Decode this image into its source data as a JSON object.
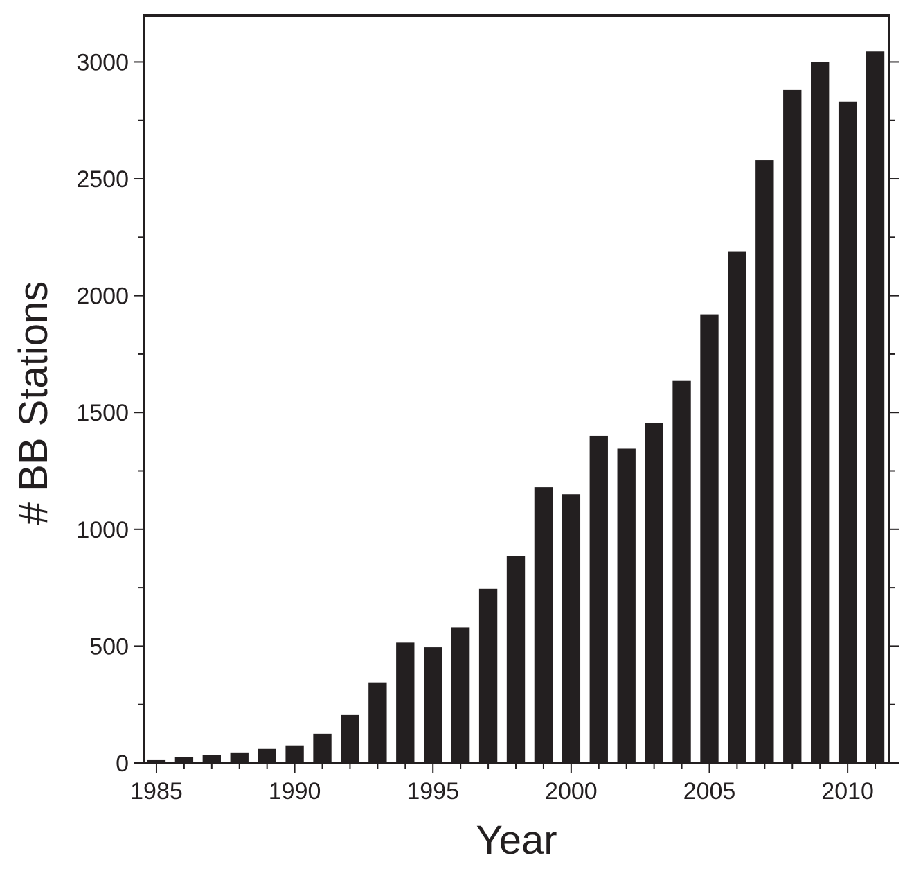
{
  "chart_data": {
    "type": "bar",
    "xlabel": "Year",
    "ylabel": "# BB Stations",
    "x": [
      1985,
      1986,
      1987,
      1988,
      1989,
      1990,
      1991,
      1992,
      1993,
      1994,
      1995,
      1996,
      1997,
      1998,
      1999,
      2000,
      2001,
      2002,
      2003,
      2004,
      2005,
      2006,
      2007,
      2008,
      2009,
      2010,
      2011
    ],
    "values": [
      15,
      25,
      35,
      45,
      60,
      75,
      125,
      205,
      345,
      515,
      495,
      580,
      745,
      885,
      1180,
      1150,
      1400,
      1345,
      1455,
      1635,
      1920,
      2190,
      2580,
      2880,
      3000,
      2830,
      3045
    ],
    "xticks": [
      1985,
      1990,
      1995,
      2000,
      2005,
      2010
    ],
    "yticks": [
      0,
      500,
      1000,
      1500,
      2000,
      2500,
      3000
    ],
    "xlim": [
      1984.55,
      2011.5
    ],
    "ylim": [
      0,
      3200
    ],
    "bar_color": "#231f20",
    "grid": false
  }
}
